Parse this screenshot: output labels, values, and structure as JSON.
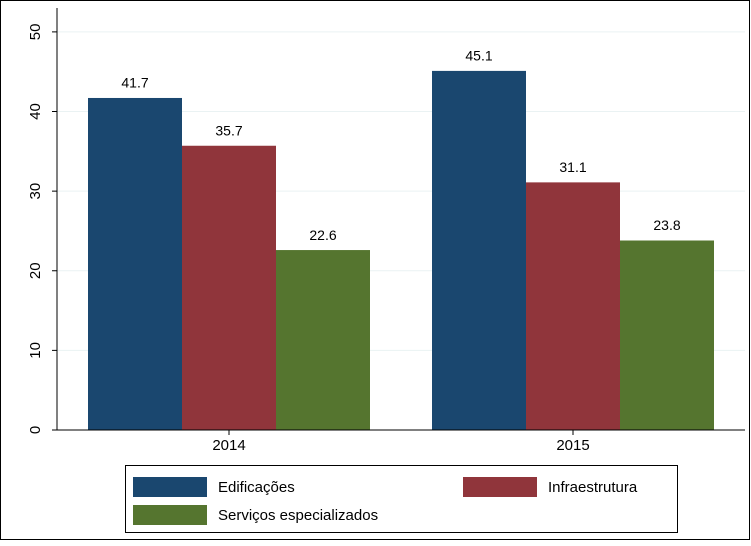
{
  "chart_data": {
    "type": "bar",
    "categories": [
      "2014",
      "2015"
    ],
    "series": [
      {
        "name": "Edificações",
        "color": "#1a476f",
        "values": [
          41.7,
          45.1
        ]
      },
      {
        "name": "Infraestrutura",
        "color": "#90353b",
        "values": [
          35.7,
          31.1
        ]
      },
      {
        "name": "Serviços especializados",
        "color": "#55752f",
        "values": [
          22.6,
          23.8
        ]
      }
    ],
    "ylim": [
      0,
      53
    ],
    "yticks": [
      0,
      10,
      20,
      30,
      40,
      50
    ],
    "grid": true,
    "legend": "bottom"
  }
}
